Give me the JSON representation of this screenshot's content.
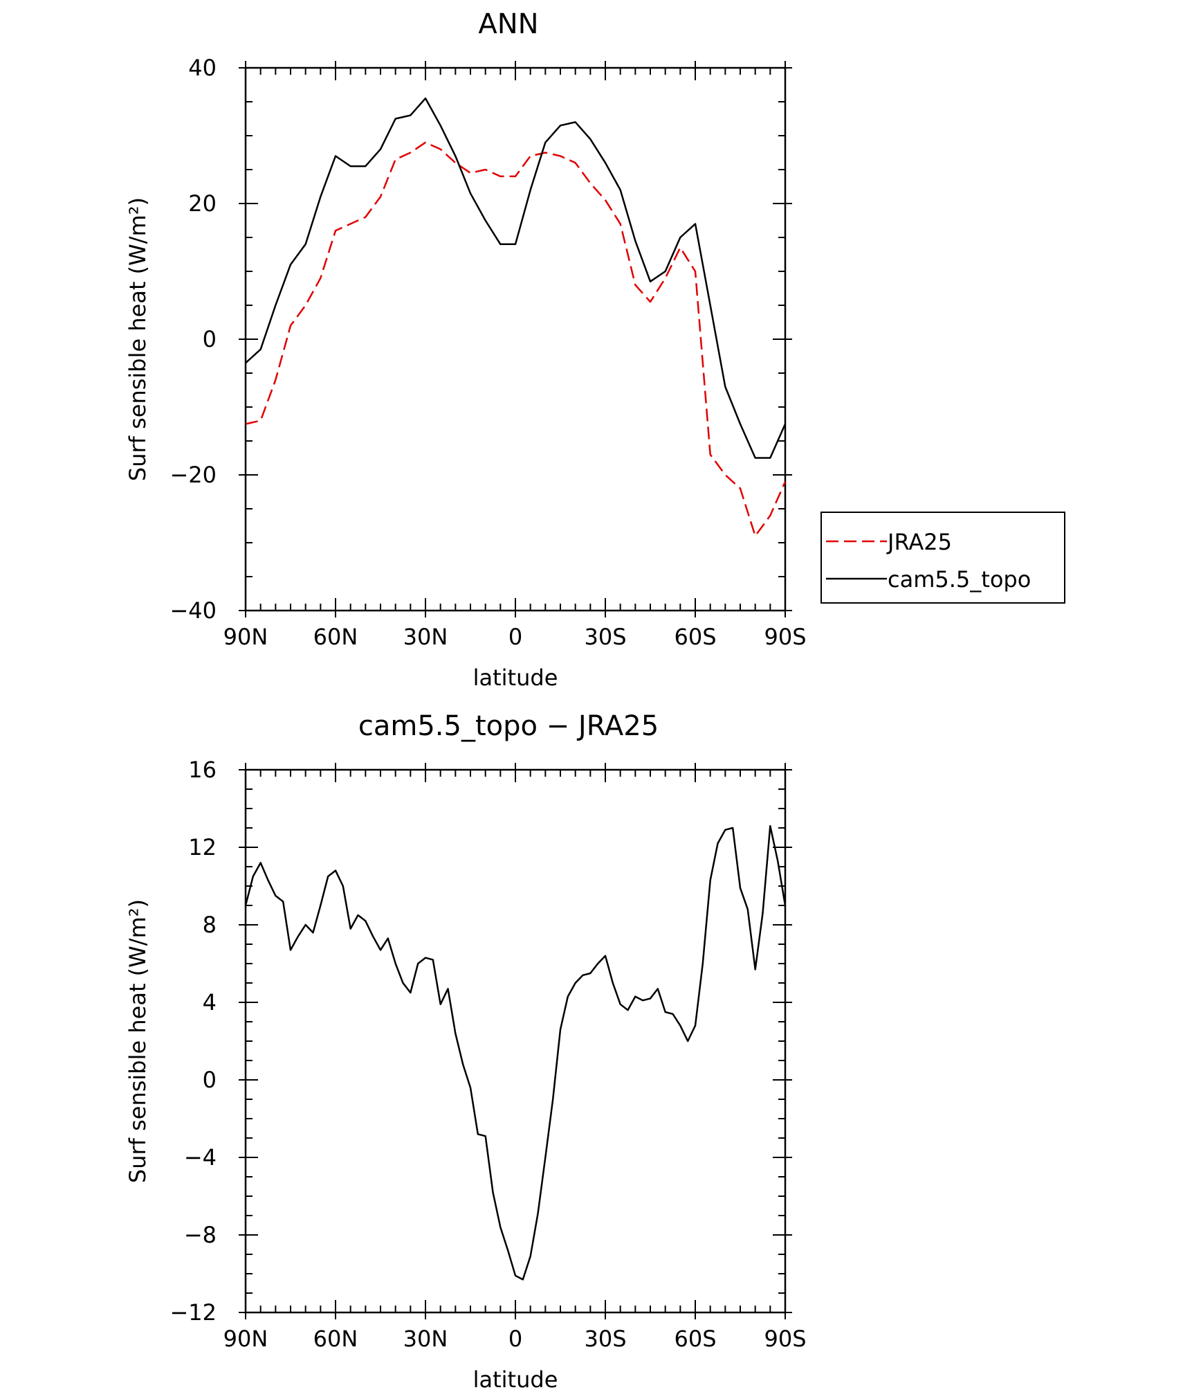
{
  "chart_data": [
    {
      "type": "line",
      "title": "ANN",
      "xlabel": "latitude",
      "ylabel": "Surf sensible heat (W/m²)",
      "xlim": [
        90,
        -90
      ],
      "ylim": [
        -40,
        40
      ],
      "xticks": [
        {
          "value": 90,
          "label": "90N"
        },
        {
          "value": 60,
          "label": "60N"
        },
        {
          "value": 30,
          "label": "30N"
        },
        {
          "value": 0,
          "label": "0"
        },
        {
          "value": -30,
          "label": "30S"
        },
        {
          "value": -60,
          "label": "60S"
        },
        {
          "value": -90,
          "label": "90S"
        }
      ],
      "yticks": [
        {
          "value": 40,
          "label": "40"
        },
        {
          "value": 20,
          "label": "20"
        },
        {
          "value": 0,
          "label": "0"
        },
        {
          "value": -20,
          "label": "−20"
        },
        {
          "value": -40,
          "label": "−40"
        }
      ],
      "legend_position": "outside-right",
      "series": [
        {
          "name": "JRA25",
          "color": "#e00000",
          "dash": "dashed",
          "x": [
            90,
            85,
            80,
            75,
            70,
            65,
            60,
            55,
            50,
            45,
            40,
            35,
            30,
            25,
            20,
            15,
            10,
            5,
            0,
            -5,
            -10,
            -15,
            -20,
            -25,
            -30,
            -35,
            -40,
            -45,
            -50,
            -55,
            -60,
            -65,
            -70,
            -75,
            -80,
            -85,
            -90
          ],
          "y": [
            -12.5,
            -12,
            -6,
            2,
            5,
            9,
            16,
            17,
            18,
            21,
            26.5,
            27.5,
            29,
            28,
            26,
            24.5,
            25,
            24,
            24,
            27,
            27.5,
            27,
            26,
            23,
            20.5,
            17,
            8,
            5.5,
            9,
            13.5,
            10,
            -17,
            -20,
            -22,
            -29,
            -26,
            -21
          ]
        },
        {
          "name": "cam5.5_topo",
          "color": "#000000",
          "dash": "solid",
          "x": [
            90,
            85,
            80,
            75,
            70,
            65,
            60,
            55,
            50,
            45,
            40,
            35,
            30,
            25,
            20,
            15,
            10,
            5,
            0,
            -5,
            -10,
            -15,
            -20,
            -25,
            -30,
            -35,
            -40,
            -45,
            -50,
            -55,
            -60,
            -65,
            -70,
            -75,
            -80,
            -85,
            -90
          ],
          "y": [
            -3.5,
            -1.5,
            5,
            11,
            14,
            21,
            27,
            25.5,
            25.5,
            28,
            32.5,
            33,
            35.5,
            31.5,
            27,
            21.5,
            17.5,
            14,
            14,
            22,
            29,
            31.5,
            32,
            29.5,
            26,
            22,
            14.5,
            8.5,
            10,
            15,
            17,
            5,
            -7,
            -12.5,
            -17.5,
            -17.5,
            -12.5
          ]
        }
      ]
    },
    {
      "type": "line",
      "title": "cam5.5_topo − JRA25",
      "xlabel": "latitude",
      "ylabel": "Surf sensible heat (W/m²)",
      "xlim": [
        90,
        -90
      ],
      "ylim": [
        -12,
        16
      ],
      "xticks": [
        {
          "value": 90,
          "label": "90N"
        },
        {
          "value": 60,
          "label": "60N"
        },
        {
          "value": 30,
          "label": "30N"
        },
        {
          "value": 0,
          "label": "0"
        },
        {
          "value": -30,
          "label": "30S"
        },
        {
          "value": -60,
          "label": "60S"
        },
        {
          "value": -90,
          "label": "90S"
        }
      ],
      "yticks": [
        {
          "value": 16,
          "label": "16"
        },
        {
          "value": 12,
          "label": "12"
        },
        {
          "value": 8,
          "label": "8"
        },
        {
          "value": 4,
          "label": "4"
        },
        {
          "value": 0,
          "label": "0"
        },
        {
          "value": -4,
          "label": "−4"
        },
        {
          "value": -8,
          "label": "−8"
        },
        {
          "value": -12,
          "label": "−12"
        }
      ],
      "series": [
        {
          "color": "#000000",
          "dash": "solid",
          "x": [
            90,
            87.5,
            85,
            82.5,
            80,
            77.5,
            75,
            72.5,
            70,
            67.5,
            65,
            62.5,
            60,
            57.5,
            55,
            52.5,
            50,
            47.5,
            45,
            42.5,
            40,
            37.5,
            35,
            32.5,
            30,
            27.5,
            25,
            22.5,
            20,
            17.5,
            15,
            12.5,
            10,
            7.5,
            5,
            2.5,
            0,
            -2.5,
            -5,
            -7.5,
            -10,
            -12.5,
            -15,
            -17.5,
            -20,
            -22.5,
            -25,
            -27.5,
            -30,
            -32.5,
            -35,
            -37.5,
            -40,
            -42.5,
            -45,
            -47.5,
            -50,
            -52.5,
            -55,
            -57.5,
            -60,
            -62.5,
            -65,
            -67.5,
            -70,
            -72.5,
            -75,
            -77.5,
            -80,
            -82.5,
            -85,
            -87.5,
            -90
          ],
          "y": [
            9,
            10.5,
            11.2,
            10.3,
            9.5,
            9.2,
            6.7,
            7.4,
            8,
            7.6,
            9,
            10.5,
            10.8,
            10,
            7.8,
            8.5,
            8.2,
            7.4,
            6.7,
            7.3,
            6,
            5,
            4.5,
            6,
            6.3,
            6.2,
            3.9,
            4.7,
            2.4,
            0.8,
            -0.4,
            -2.8,
            -2.9,
            -5.8,
            -7.6,
            -8.8,
            -10.1,
            -10.3,
            -9.1,
            -6.9,
            -4,
            -1,
            2.6,
            4.3,
            5,
            5.4,
            5.5,
            6,
            6.4,
            5,
            3.9,
            3.6,
            4.3,
            4.1,
            4.2,
            4.7,
            3.5,
            3.4,
            2.8,
            2,
            2.8,
            6,
            10.3,
            12.2,
            12.9,
            13,
            9.9,
            8.8,
            5.7,
            8.6,
            13.1,
            11.3,
            9
          ]
        }
      ]
    }
  ]
}
